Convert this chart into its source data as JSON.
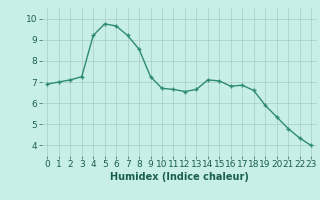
{
  "x": [
    0,
    1,
    2,
    3,
    4,
    5,
    6,
    7,
    8,
    9,
    10,
    11,
    12,
    13,
    14,
    15,
    16,
    17,
    18,
    19,
    20,
    21,
    22,
    23
  ],
  "y": [
    6.9,
    7.0,
    7.1,
    7.25,
    9.2,
    9.75,
    9.65,
    9.2,
    8.55,
    7.25,
    6.7,
    6.65,
    6.55,
    6.65,
    7.1,
    7.05,
    6.8,
    6.85,
    6.6,
    5.9,
    5.35,
    4.8,
    4.35,
    4.0
  ],
  "line_color": "#2e8b74",
  "marker": "+",
  "marker_size": 3,
  "marker_edge_width": 1.0,
  "background_color": "#c8eee8",
  "plot_bg_color": "#c8eee8",
  "grid_color": "#a8ccc6",
  "xlabel": "Humidex (Indice chaleur)",
  "xlabel_fontsize": 7,
  "xlabel_color": "#1a5f50",
  "yticks": [
    4,
    5,
    6,
    7,
    8,
    9,
    10
  ],
  "xticks": [
    0,
    1,
    2,
    3,
    4,
    5,
    6,
    7,
    8,
    9,
    10,
    11,
    12,
    13,
    14,
    15,
    16,
    17,
    18,
    19,
    20,
    21,
    22,
    23
  ],
  "ylim": [
    3.5,
    10.5
  ],
  "xlim": [
    -0.5,
    23.5
  ],
  "tick_fontsize": 6.5,
  "tick_color": "#1a5f50",
  "line_width": 1.0
}
